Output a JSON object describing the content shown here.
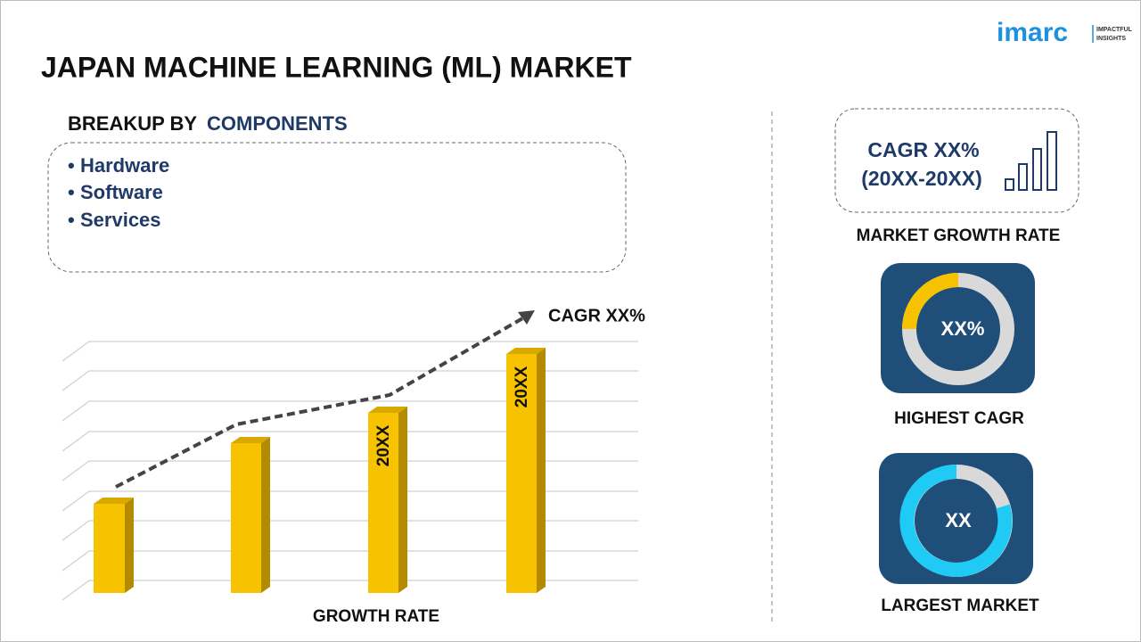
{
  "header": {
    "title": "JAPAN MACHINE LEARNING (ML) MARKET",
    "logo": {
      "brand": "imarc",
      "tagline_1": "IMPACTFUL",
      "tagline_2": "INSIGHTS"
    }
  },
  "breakup": {
    "prefix": "BREAKUP BY",
    "highlight": "COMPONENTS",
    "items": [
      "Hardware",
      "Software",
      "Services"
    ]
  },
  "growth_chart": {
    "cagr": "CAGR XX%",
    "bar_labels": [
      "20XX",
      "20XX"
    ],
    "axis_label": "GROWTH RATE"
  },
  "side_panel": {
    "cagr_line1": "CAGR XX%",
    "cagr_line2": "(20XX-20XX)",
    "cagr_caption": "MARKET GROWTH RATE",
    "highest_value": "XX%",
    "highest_caption": "HIGHEST CAGR",
    "largest_value": "XX",
    "largest_caption": "LARGEST MARKET"
  }
}
